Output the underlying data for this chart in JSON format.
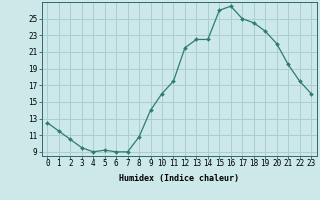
{
  "x": [
    0,
    1,
    2,
    3,
    4,
    5,
    6,
    7,
    8,
    9,
    10,
    11,
    12,
    13,
    14,
    15,
    16,
    17,
    18,
    19,
    20,
    21,
    22,
    23
  ],
  "y": [
    12.5,
    11.5,
    10.5,
    9.5,
    9.0,
    9.2,
    9.0,
    9.0,
    10.8,
    14.0,
    16.0,
    17.5,
    21.5,
    22.5,
    22.5,
    26.0,
    26.5,
    25.0,
    24.5,
    23.5,
    22.0,
    19.5,
    17.5,
    16.0
  ],
  "line_color": "#2e7d6e",
  "marker": "D",
  "marker_size": 2,
  "bg_color": "#cce8e8",
  "grid_color": "#aacece",
  "xlabel": "Humidex (Indice chaleur)",
  "xlim": [
    -0.5,
    23.5
  ],
  "ylim": [
    8.5,
    27
  ],
  "yticks": [
    9,
    11,
    13,
    15,
    17,
    19,
    21,
    23,
    25
  ],
  "xticks": [
    0,
    1,
    2,
    3,
    4,
    5,
    6,
    7,
    8,
    9,
    10,
    11,
    12,
    13,
    14,
    15,
    16,
    17,
    18,
    19,
    20,
    21,
    22,
    23
  ],
  "xtick_labels": [
    "0",
    "1",
    "2",
    "3",
    "4",
    "5",
    "6",
    "7",
    "8",
    "9",
    "10",
    "11",
    "12",
    "13",
    "14",
    "15",
    "16",
    "17",
    "18",
    "19",
    "20",
    "21",
    "22",
    "23"
  ],
  "label_fontsize": 6,
  "tick_fontsize": 5.5
}
